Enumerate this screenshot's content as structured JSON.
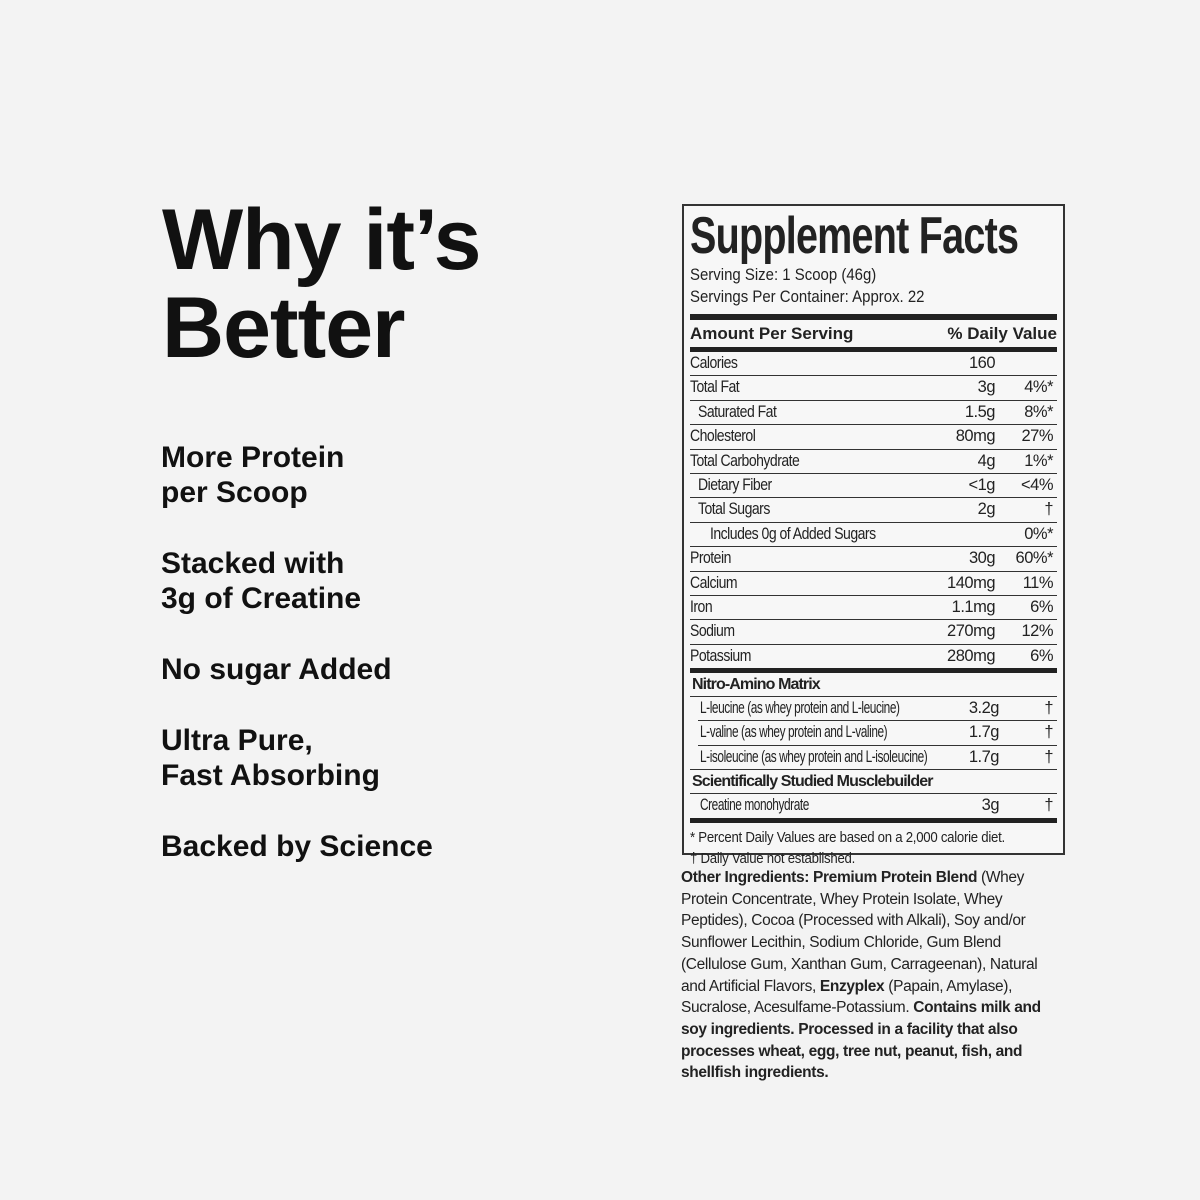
{
  "headline": "Why it’s Better",
  "benefits": [
    "More Protein\nper Scoop",
    "Stacked with\n3g of Creatine",
    "No sugar Added",
    "Ultra Pure,\nFast Absorbing",
    "Backed by Science"
  ],
  "facts": {
    "title": "Supplement Facts",
    "serving_size": "Serving Size: 1 Scoop (46g)",
    "servings_per_container": "Servings Per Container: Approx. 22",
    "amount_header": "Amount Per Serving",
    "dv_header": "% Daily Value",
    "rows": [
      {
        "name": "Calories",
        "amount": "160",
        "dv": ""
      },
      {
        "name": "Total Fat",
        "amount": "3g",
        "dv": "4%*"
      },
      {
        "name": "Saturated Fat",
        "amount": "1.5g",
        "dv": "8%*"
      },
      {
        "name": "Cholesterol",
        "amount": "80mg",
        "dv": "27%"
      },
      {
        "name": "Total Carbohydrate",
        "amount": "4g",
        "dv": "1%*"
      },
      {
        "name": "Dietary Fiber",
        "amount": "<1g",
        "dv": "<4%"
      },
      {
        "name": "Total Sugars",
        "amount": "2g",
        "dv": "†"
      },
      {
        "name": "Includes 0g of Added Sugars",
        "amount": "",
        "dv": "0%*"
      },
      {
        "name": "Protein",
        "amount": "30g",
        "dv": "60%*"
      },
      {
        "name": "Calcium",
        "amount": "140mg",
        "dv": "11%"
      },
      {
        "name": "Iron",
        "amount": "1.1mg",
        "dv": "6%"
      },
      {
        "name": "Sodium",
        "amount": "270mg",
        "dv": "12%"
      },
      {
        "name": "Potassium",
        "amount": "280mg",
        "dv": "6%"
      }
    ],
    "blend1_title": "Nitro-Amino Matrix",
    "blend1": [
      {
        "name": "L-leucine (as whey protein and L-leucine)",
        "amount": "3.2g",
        "dv": "†"
      },
      {
        "name": "L-valine (as whey protein and L-valine)",
        "amount": "1.7g",
        "dv": "†"
      },
      {
        "name": "L-isoleucine (as whey protein and L-isoleucine)",
        "amount": "1.7g",
        "dv": "†"
      }
    ],
    "blend2_title": "Scientifically Studied Musclebuilder",
    "blend2": [
      {
        "name": "Creatine monohydrate",
        "amount": "3g",
        "dv": "†"
      }
    ],
    "footnote1": "* Percent Daily Values are based on a 2,000 calorie diet.",
    "footnote2": "† Daily Value not established."
  },
  "ingredients": {
    "label": "Other Ingredients:",
    "blend_name": "Premium Protein Blend",
    "text1": " (Whey Protein Concentrate, Whey Protein Isolate, Whey Peptides), Cocoa (Processed with Alkali), Soy and/or Sunflower Lecithin, Sodium Chloride, Gum Blend (Cellulose Gum, Xanthan Gum, Carrageenan), Natural and Artificial Flavors, ",
    "enzyme": "Enzyplex",
    "text2": " (Papain, Amylase), Sucralose, Acesulfame-Potassium. ",
    "allergen": "Contains milk and soy ingredients. Processed in a facility that also processes wheat, egg, tree nut, peanut, fish, and shellfish ingredients."
  }
}
